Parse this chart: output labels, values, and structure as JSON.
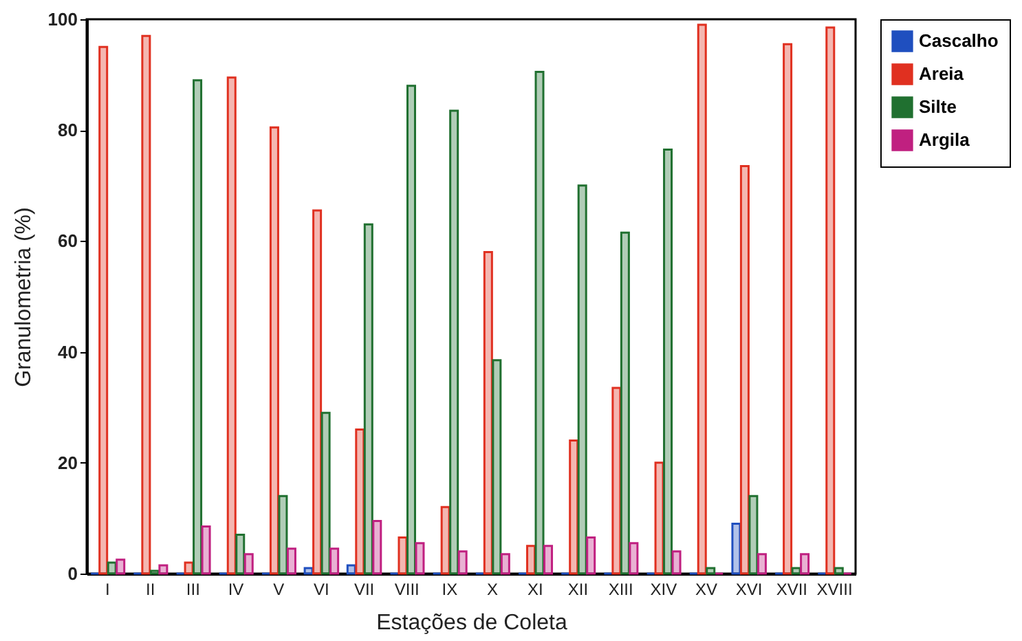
{
  "chart_data": {
    "type": "bar",
    "xlabel": "Estações de Coleta",
    "ylabel": "Granulometria (%)",
    "categories": [
      "I",
      "II",
      "III",
      "IV",
      "V",
      "VI",
      "VII",
      "VIII",
      "IX",
      "X",
      "XI",
      "XII",
      "XIII",
      "XIV",
      "XV",
      "XVI",
      "XVII",
      "XVIII"
    ],
    "series": [
      {
        "name": "Cascalho",
        "color": "#1f4fbf",
        "values": [
          0,
          0,
          0,
          0,
          0,
          1,
          1.5,
          0,
          0,
          0,
          0,
          0,
          0,
          0,
          0,
          9,
          0,
          0
        ]
      },
      {
        "name": "Areia",
        "color": "#e03020",
        "values": [
          95,
          97,
          2,
          89.5,
          80.5,
          65.5,
          26,
          6.5,
          12,
          58,
          5,
          24,
          33.5,
          20,
          99,
          73.5,
          95.5,
          98.5
        ]
      },
      {
        "name": "Silte",
        "color": "#207030",
        "values": [
          2,
          0.5,
          89,
          7,
          14,
          29,
          63,
          88,
          83.5,
          38.5,
          90.5,
          70,
          61.5,
          76.5,
          1,
          14,
          1,
          1
        ]
      },
      {
        "name": "Argila",
        "color": "#c02080",
        "values": [
          2.5,
          1.5,
          8.5,
          3.5,
          4.5,
          4.5,
          9.5,
          5.5,
          4,
          3.5,
          5,
          6.5,
          5.5,
          4,
          0,
          3.5,
          3.5,
          0
        ]
      }
    ],
    "ylim": [
      0,
      100
    ],
    "yticks": [
      0,
      20,
      40,
      60,
      80,
      100
    ],
    "grid": false,
    "legend": "right"
  }
}
